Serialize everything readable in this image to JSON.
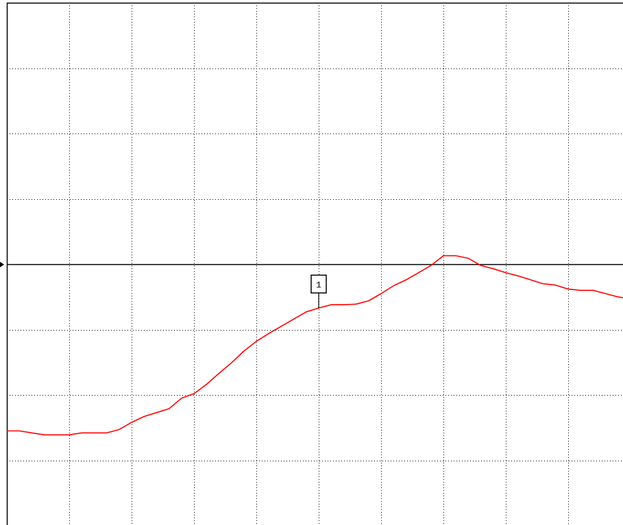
{
  "display": {
    "colors": {
      "background": "#ffffff",
      "frame": "#000000",
      "grid": "#000000",
      "reference_line": "#000000",
      "trace": "#ff0000",
      "marker": "#000000"
    },
    "reference_indicator_icon": "right-pointing-triangle"
  },
  "marker": {
    "label": "1",
    "trace_index": 25
  },
  "chart_data": {
    "type": "line",
    "title": "",
    "xlabel": "",
    "ylabel": "",
    "grid": true,
    "x_divisions": 10,
    "y_divisions": 8,
    "reference_division": 4,
    "xlim": [
      0,
      50
    ],
    "ylim": [
      0,
      8
    ],
    "series": [
      {
        "values": [
          1.45,
          1.45,
          1.42,
          1.39,
          1.39,
          1.39,
          1.42,
          1.42,
          1.42,
          1.47,
          1.58,
          1.67,
          1.73,
          1.79,
          1.95,
          2.02,
          2.16,
          2.33,
          2.49,
          2.67,
          2.82,
          2.94,
          3.05,
          3.16,
          3.27,
          3.33,
          3.38,
          3.38,
          3.39,
          3.44,
          3.55,
          3.67,
          3.76,
          3.87,
          3.98,
          4.13,
          4.13,
          4.09,
          3.98,
          3.93,
          3.87,
          3.82,
          3.76,
          3.7,
          3.68,
          3.62,
          3.6,
          3.6,
          3.55,
          3.5,
          3.47
        ]
      }
    ]
  }
}
